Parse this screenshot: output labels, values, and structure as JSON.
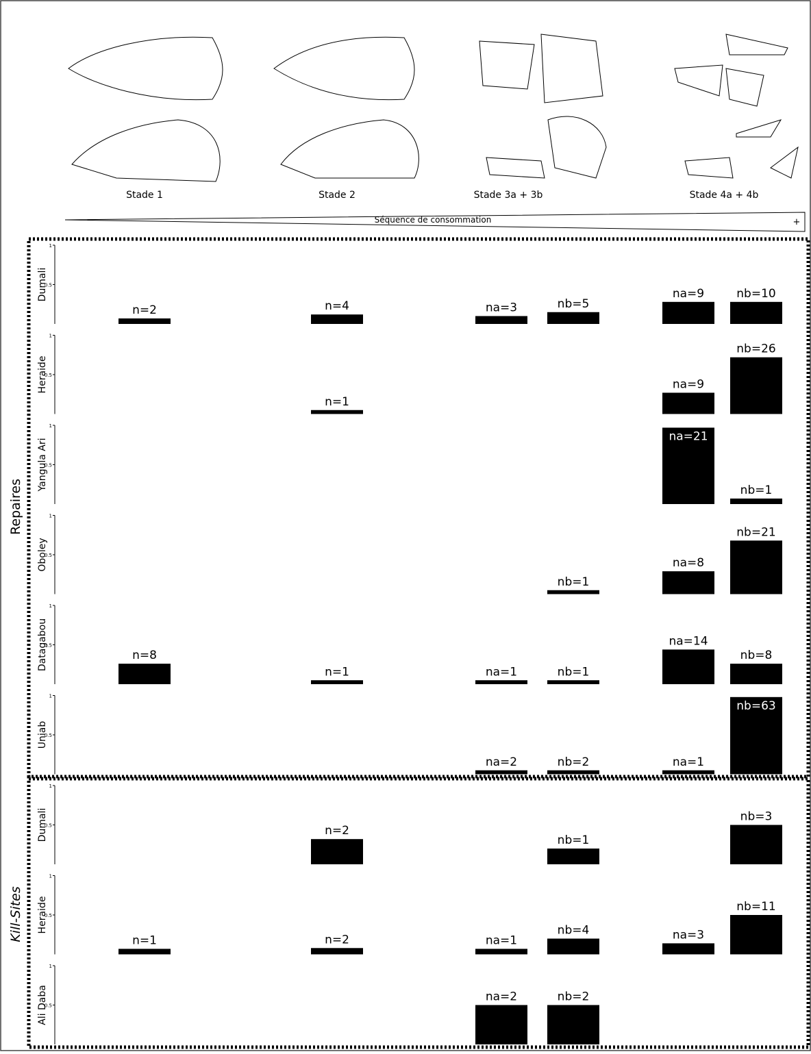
{
  "stages": [
    "Stade 1",
    "Stade 2",
    "Stade 3a + 3b",
    "Stade 4a + 4b"
  ],
  "sequence_label": "Séquence de consommation",
  "sequence_end": "+",
  "groups": [
    "Repaires",
    "Kill-Sites"
  ],
  "chart_data": [
    {
      "type": "bar",
      "title": "Dumali",
      "ylim": [
        0,
        1
      ],
      "yticks": [
        0.5,
        1
      ],
      "color": "#000000",
      "values": [
        0.07,
        0.12,
        0.1,
        0.15,
        0.28,
        0.28
      ],
      "value_labels": [
        "n=2",
        "n=4",
        "na=3",
        "nb=5",
        "na=9",
        "nb=10"
      ]
    },
    {
      "type": "bar",
      "title": "Heraide",
      "ylim": [
        0,
        1
      ],
      "yticks": [
        0.5,
        1
      ],
      "color": "#000000",
      "values": [
        null,
        0.05,
        null,
        null,
        0.27,
        0.72
      ],
      "value_labels": [
        null,
        "n=1",
        null,
        null,
        "na=9",
        "nb=26"
      ]
    },
    {
      "type": "bar",
      "title": "Yangula Ari",
      "ylim": [
        0,
        1
      ],
      "yticks": [
        0.5,
        1
      ],
      "color": "#000000",
      "values": [
        null,
        null,
        null,
        null,
        0.97,
        0.07
      ],
      "value_labels": [
        null,
        null,
        null,
        null,
        "na=21",
        "nb=1"
      ]
    },
    {
      "type": "bar",
      "title": "Oboley",
      "ylim": [
        0,
        1
      ],
      "yticks": [
        0.5,
        1
      ],
      "color": "#000000",
      "values": [
        null,
        null,
        null,
        0.05,
        0.29,
        0.68
      ],
      "value_labels": [
        null,
        null,
        null,
        "nb=1",
        "na=8",
        "nb=21"
      ]
    },
    {
      "type": "bar",
      "title": "Datagabou",
      "ylim": [
        0,
        1
      ],
      "yticks": [
        0.5,
        1
      ],
      "color": "#000000",
      "values": [
        0.26,
        0.05,
        0.05,
        0.05,
        0.44,
        0.26
      ],
      "value_labels": [
        "n=8",
        "n=1",
        "na=1",
        "nb=1",
        "na=14",
        "nb=8"
      ]
    },
    {
      "type": "bar",
      "title": "Uniab",
      "ylim": [
        0,
        1
      ],
      "yticks": [
        0.5,
        1
      ],
      "color": "#000000",
      "values": [
        null,
        null,
        0.05,
        0.05,
        0.05,
        0.98
      ],
      "value_labels": [
        null,
        null,
        "na=2",
        "nb=2",
        "na=1",
        "nb=63"
      ]
    },
    {
      "type": "bar",
      "title": "Dumali",
      "ylim": [
        0,
        1
      ],
      "yticks": [
        0.5,
        1
      ],
      "color": "#000000",
      "values": [
        null,
        0.32,
        null,
        0.2,
        null,
        0.5
      ],
      "value_labels": [
        null,
        "n=2",
        null,
        "nb=1",
        null,
        "nb=3"
      ]
    },
    {
      "type": "bar",
      "title": "Heraide",
      "ylim": [
        0,
        1
      ],
      "yticks": [
        0.5,
        1
      ],
      "color": "#000000",
      "values": [
        0.07,
        0.08,
        0.07,
        0.2,
        0.14,
        0.5
      ],
      "value_labels": [
        "n=1",
        "n=2",
        "na=1",
        "nb=4",
        "na=3",
        "nb=11"
      ]
    },
    {
      "type": "bar",
      "title": "Ali Daba",
      "ylim": [
        0,
        1
      ],
      "yticks": [
        0.5,
        1
      ],
      "color": "#000000",
      "values": [
        null,
        null,
        0.5,
        0.5,
        null,
        null
      ],
      "value_labels": [
        null,
        null,
        "na=2",
        "nb=2",
        null,
        null
      ]
    }
  ]
}
